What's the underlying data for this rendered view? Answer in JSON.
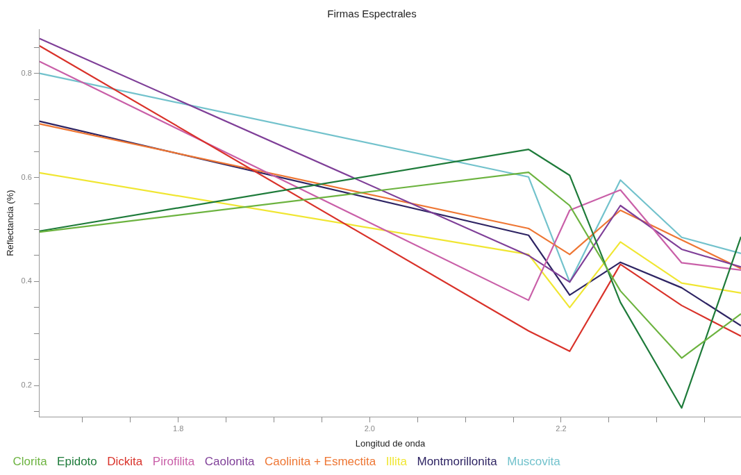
{
  "chart_data": {
    "type": "line",
    "title": "Firmas Espectrales",
    "xlabel": "Longitud de onda",
    "ylabel": "Reflectancia (%)",
    "x": [
      1.655,
      2.166,
      2.209,
      2.262,
      2.326,
      2.388
    ],
    "series": [
      {
        "name": "Clorita",
        "color": "#6cb33f",
        "values": [
          0.495,
          0.61,
          0.546,
          0.382,
          0.253,
          0.338
        ]
      },
      {
        "name": "Epidoto",
        "color": "#1e7b3a",
        "values": [
          0.497,
          0.654,
          0.604,
          0.36,
          0.157,
          0.486
        ]
      },
      {
        "name": "Dickita",
        "color": "#d9322a",
        "values": [
          0.853,
          0.305,
          0.266,
          0.433,
          0.354,
          0.295
        ]
      },
      {
        "name": "Pirofilita",
        "color": "#c95fa8",
        "values": [
          0.823,
          0.364,
          0.537,
          0.576,
          0.436,
          0.422
        ]
      },
      {
        "name": "Caolonita",
        "color": "#7f3f98",
        "values": [
          0.867,
          0.45,
          0.399,
          0.546,
          0.462,
          0.428
        ]
      },
      {
        "name": "Caolinita + Esmectita",
        "color": "#ee7633",
        "values": [
          0.703,
          0.502,
          0.452,
          0.537,
          0.48,
          0.425
        ]
      },
      {
        "name": "Illita",
        "color": "#f0e632",
        "values": [
          0.609,
          0.452,
          0.35,
          0.476,
          0.397,
          0.378
        ]
      },
      {
        "name": "Montmorillonita",
        "color": "#2e2463",
        "values": [
          0.708,
          0.489,
          0.374,
          0.437,
          0.388,
          0.315
        ]
      },
      {
        "name": "Muscovita",
        "color": "#72c2cc",
        "values": [
          0.8,
          0.601,
          0.399,
          0.595,
          0.485,
          0.454
        ]
      }
    ],
    "xlim": [
      1.655,
      2.388
    ],
    "xticks": [
      {
        "value": 1.7,
        "label": null
      },
      {
        "value": 1.75,
        "label": null
      },
      1.8,
      {
        "value": 1.85,
        "label": null
      },
      {
        "value": 1.9,
        "label": null
      },
      {
        "value": 1.95,
        "label": null
      },
      {
        "value": 2,
        "label": "2.0"
      },
      {
        "value": 2.05,
        "label": null
      },
      {
        "value": 2.1,
        "label": null
      },
      {
        "value": 2.15,
        "label": null
      },
      2.2,
      {
        "value": 2.25,
        "label": null
      },
      {
        "value": 2.3,
        "label": null
      },
      {
        "value": 2.35,
        "label": null
      }
    ],
    "ylim": [
      0.14,
      0.885
    ],
    "yticks": [
      {
        "value": 0.15,
        "label": null
      },
      0.2,
      {
        "value": 0.25,
        "label": null
      },
      {
        "value": 0.3,
        "label": null
      },
      {
        "value": 0.35,
        "label": null
      },
      0.4,
      {
        "value": 0.45,
        "label": null
      },
      {
        "value": 0.5,
        "label": null
      },
      {
        "value": 0.55,
        "label": null
      },
      0.6,
      {
        "value": 0.65,
        "label": null
      },
      {
        "value": 0.7,
        "label": null
      },
      {
        "value": 0.75,
        "label": null
      },
      0.8,
      {
        "value": 0.85,
        "label": null
      }
    ],
    "grid": false,
    "legend": "bottom",
    "marker": "none",
    "line_style": "solid"
  }
}
